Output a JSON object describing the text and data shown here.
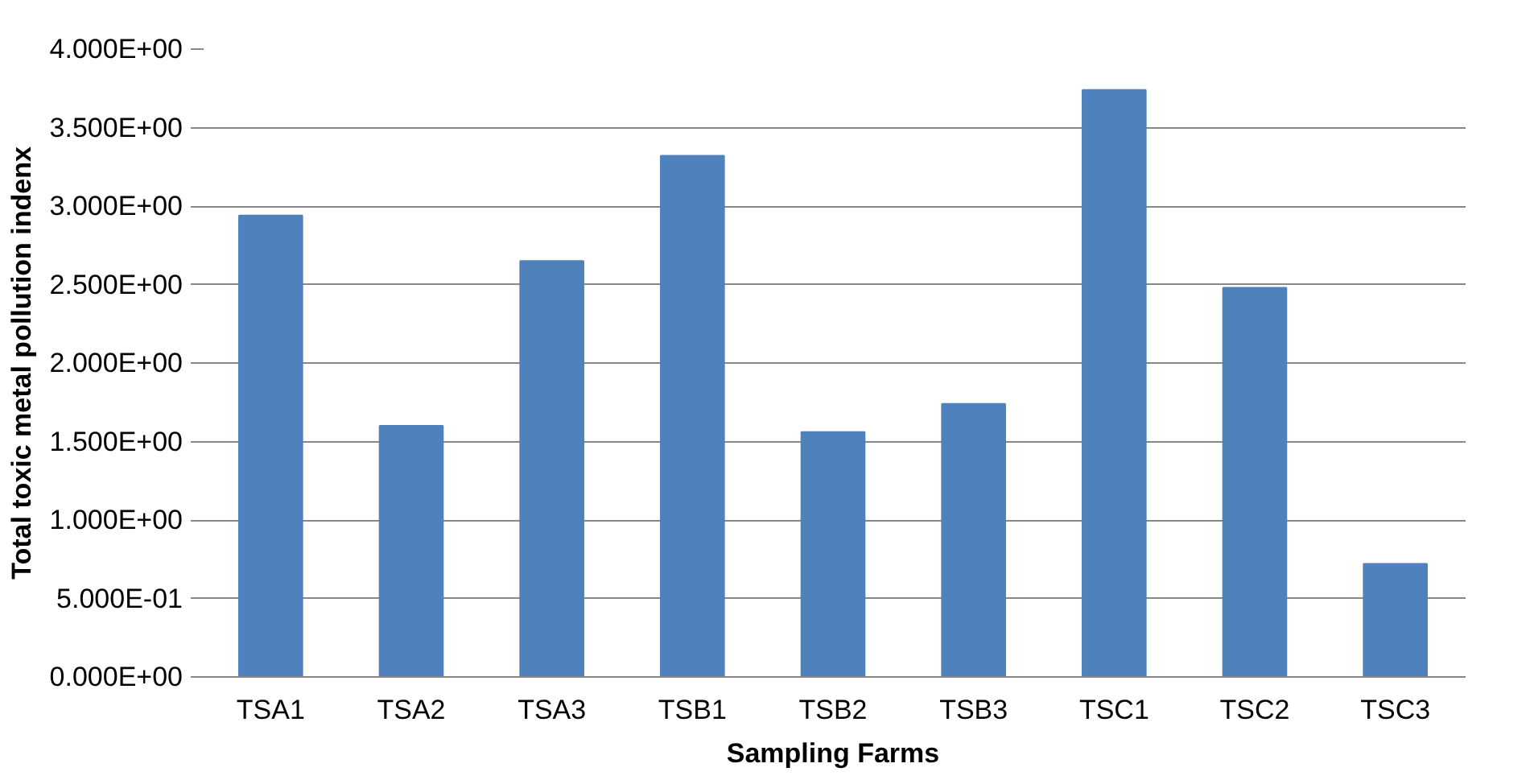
{
  "chart_data": {
    "type": "bar",
    "xlabel": "Sampling Farms",
    "ylabel": "Total toxic metal pollution indenx",
    "categories": [
      "TSA1",
      "TSA2",
      "TSA3",
      "TSB1",
      "TSB2",
      "TSB3",
      "TSC1",
      "TSC2",
      "TSC3"
    ],
    "values": [
      2.94,
      1.6,
      2.65,
      3.32,
      1.56,
      1.74,
      3.74,
      2.48,
      0.72
    ],
    "color": "#4f81bd",
    "ylim": [
      0,
      4
    ],
    "yticks": [
      {
        "value": 0,
        "label": "0.000E+00"
      },
      {
        "value": 0.5,
        "label": "5.000E-01"
      },
      {
        "value": 1,
        "label": "1.000E+00"
      },
      {
        "value": 1.5,
        "label": "1.500E+00"
      },
      {
        "value": 2,
        "label": "2.000E+00"
      },
      {
        "value": 2.5,
        "label": "2.500E+00"
      },
      {
        "value": 3,
        "label": "3.000E+00"
      },
      {
        "value": 3.5,
        "label": "3.500E+00"
      },
      {
        "value": 4,
        "label": "4.000E+00"
      }
    ],
    "grid": "y"
  }
}
